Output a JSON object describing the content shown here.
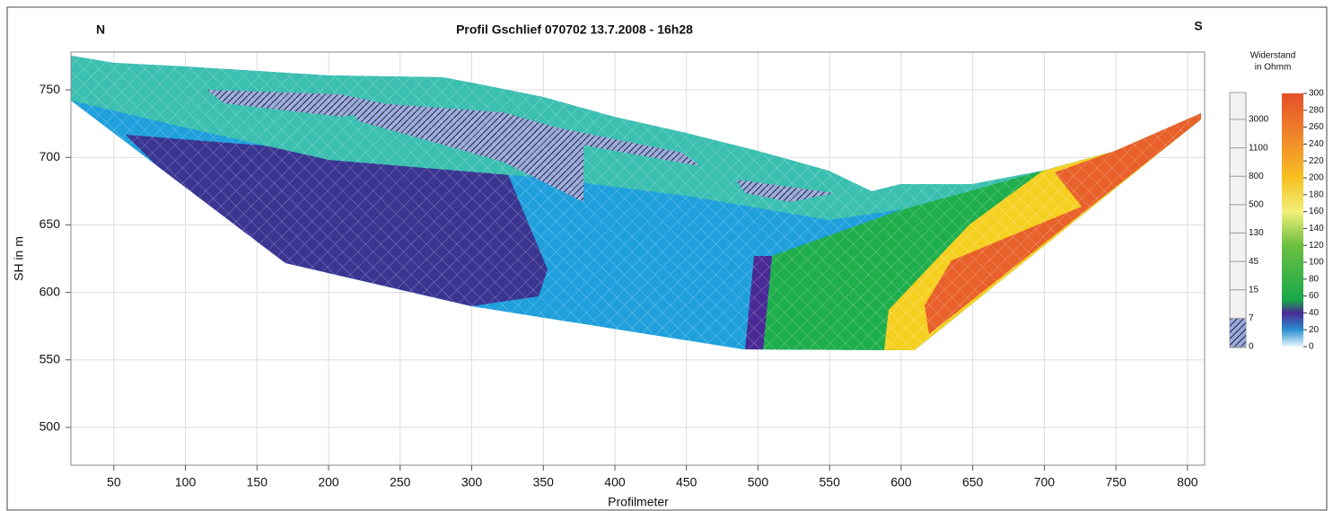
{
  "chart_data": {
    "type": "contour",
    "title": "Profil Gschlief 070702  13.7.2008 - 16h28",
    "left_label": "N",
    "right_label": "S",
    "xlabel": "Profilmeter",
    "ylabel": "SH in m",
    "xlim": [
      20,
      812
    ],
    "ylim": [
      472,
      778
    ],
    "xticks": [
      50,
      100,
      150,
      200,
      250,
      300,
      350,
      400,
      450,
      500,
      550,
      600,
      650,
      700,
      750,
      800
    ],
    "yticks": [
      500,
      550,
      600,
      650,
      700,
      750
    ],
    "grid": true,
    "colorbar": {
      "title": [
        "Widerstand",
        "in Ohmm"
      ],
      "ticks": [
        0,
        20,
        40,
        60,
        80,
        100,
        120,
        140,
        160,
        180,
        200,
        220,
        240,
        260,
        280,
        300
      ],
      "stops": [
        {
          "value": 0,
          "color": "#e8f8fb"
        },
        {
          "value": 20,
          "color": "#2a8fd0"
        },
        {
          "value": 40,
          "color": "#4a2a96"
        },
        {
          "value": 55,
          "color": "#18a84a"
        },
        {
          "value": 120,
          "color": "#6cc040"
        },
        {
          "value": 160,
          "color": "#f2f07a"
        },
        {
          "value": 200,
          "color": "#f6c020"
        },
        {
          "value": 240,
          "color": "#f2902a"
        },
        {
          "value": 300,
          "color": "#e5502a"
        }
      ]
    },
    "lithology_ticks": [
      3000,
      1100,
      800,
      500,
      130,
      45,
      15,
      7,
      0
    ]
  }
}
